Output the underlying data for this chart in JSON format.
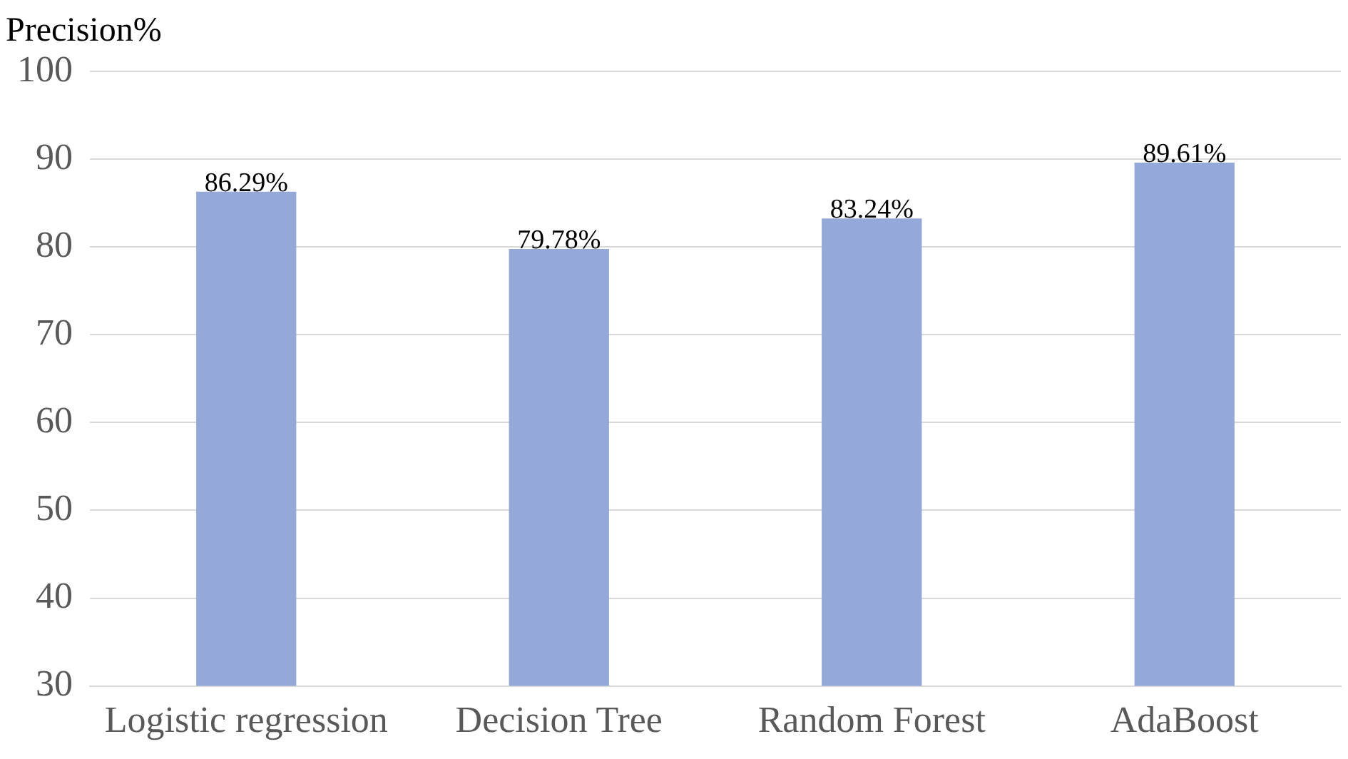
{
  "chart_data": {
    "type": "bar",
    "ylabel": "Precision%",
    "categories": [
      "Logistic regression",
      "Decision Tree",
      "Random Forest",
      "AdaBoost"
    ],
    "values": [
      86.29,
      79.78,
      83.24,
      89.61
    ],
    "color": "#94a9d8",
    "value_labels": [
      "86.29%",
      "79.78%",
      "83.24%",
      "89.61%"
    ],
    "ylim": [
      30,
      100
    ],
    "yticks": [
      30,
      40,
      50,
      60,
      70,
      80,
      90,
      100
    ],
    "grid": "y",
    "legend": false
  }
}
